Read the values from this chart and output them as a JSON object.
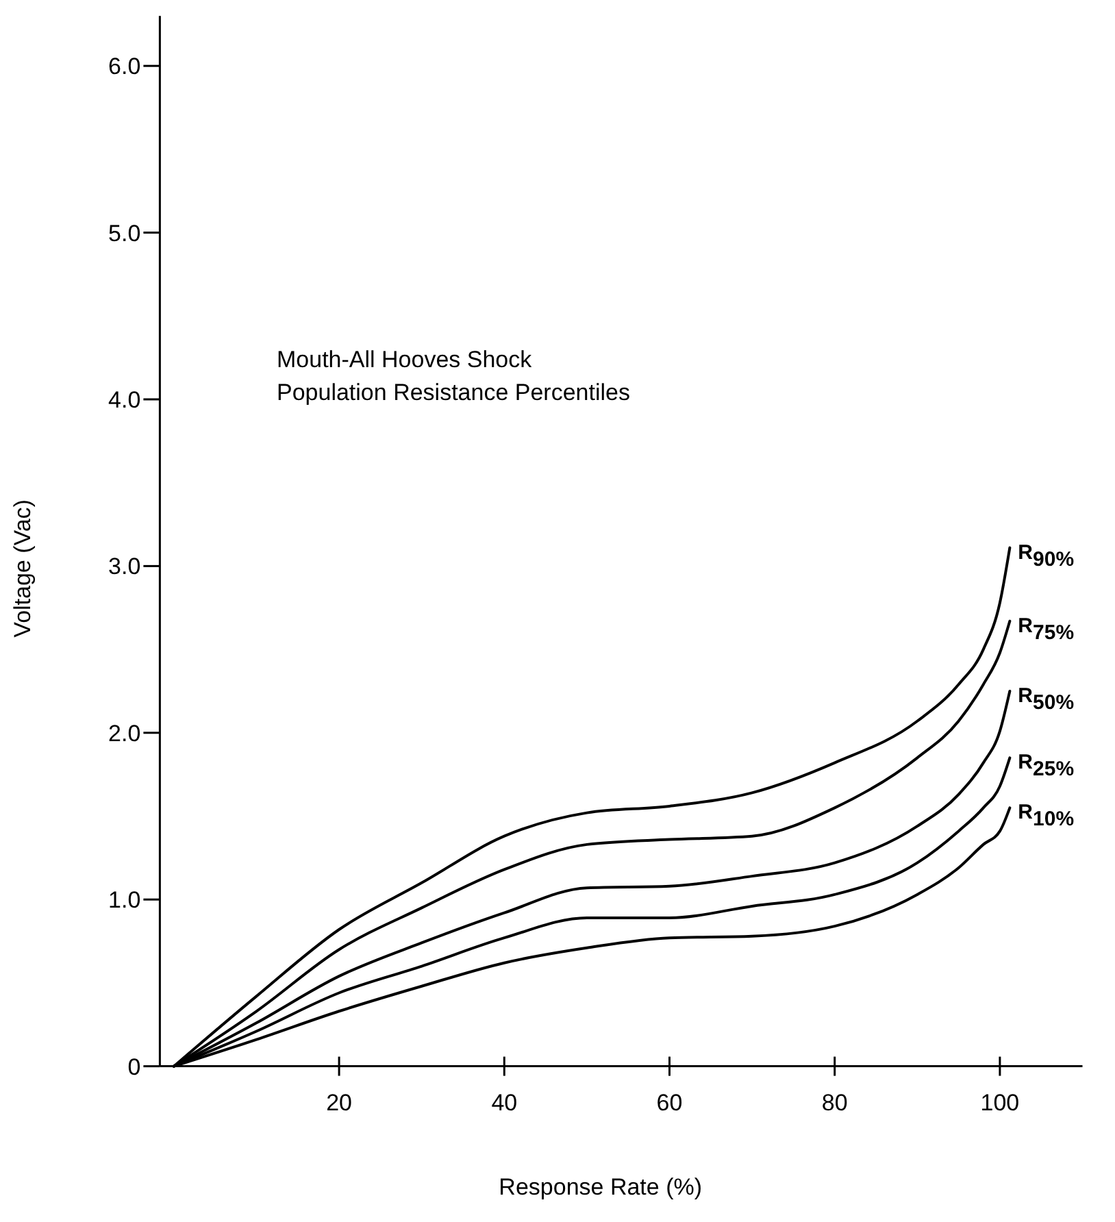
{
  "chart_data": {
    "type": "line",
    "title": "Mouth-All Hooves Shock\nPopulation Resistance Percentiles",
    "xlabel": "Response Rate (%)",
    "ylabel": "Voltage (Vac)",
    "x": [
      0,
      10,
      20,
      30,
      40,
      50,
      60,
      70,
      80,
      90,
      95,
      98,
      100,
      101.2
    ],
    "xlim": [
      -1.7,
      110
    ],
    "xticks": [
      20,
      40,
      60,
      80,
      100
    ],
    "ylim": [
      0,
      6.3
    ],
    "yticks": [
      {
        "value": 0,
        "label": "0"
      },
      {
        "value": 1,
        "label": "1.0"
      },
      {
        "value": 2,
        "label": "2.0"
      },
      {
        "value": 3,
        "label": "3.0"
      },
      {
        "value": 4,
        "label": "4.0"
      },
      {
        "value": 5,
        "label": "5.0"
      },
      {
        "value": 6,
        "label": "6.0"
      }
    ],
    "grid": false,
    "marker": "none",
    "line_style": "solid",
    "series": [
      {
        "name": "R$_{90%}$",
        "color": "#000000",
        "values": [
          0,
          0.42,
          0.82,
          1.1,
          1.38,
          1.52,
          1.56,
          1.64,
          1.82,
          2.07,
          2.29,
          2.5,
          2.78,
          3.11
        ]
      },
      {
        "name": "R$_{75%}$",
        "color": "#000000",
        "values": [
          0,
          0.33,
          0.7,
          0.95,
          1.18,
          1.33,
          1.36,
          1.38,
          1.55,
          1.85,
          2.07,
          2.29,
          2.48,
          2.67
        ]
      },
      {
        "name": "R$_{50%}$",
        "color": "#000000",
        "values": [
          0,
          0.26,
          0.54,
          0.74,
          0.92,
          1.07,
          1.08,
          1.14,
          1.22,
          1.44,
          1.63,
          1.82,
          2.01,
          2.25
        ]
      },
      {
        "name": "R$_{25%}$",
        "color": "#000000",
        "values": [
          0,
          0.21,
          0.44,
          0.6,
          0.77,
          0.89,
          0.89,
          0.96,
          1.03,
          1.22,
          1.41,
          1.55,
          1.68,
          1.85
        ]
      },
      {
        "name": "R$_{10%}$",
        "color": "#000000",
        "values": [
          0,
          0.16,
          0.33,
          0.48,
          0.62,
          0.71,
          0.77,
          0.78,
          0.84,
          1.03,
          1.19,
          1.33,
          1.41,
          1.55
        ]
      }
    ]
  }
}
